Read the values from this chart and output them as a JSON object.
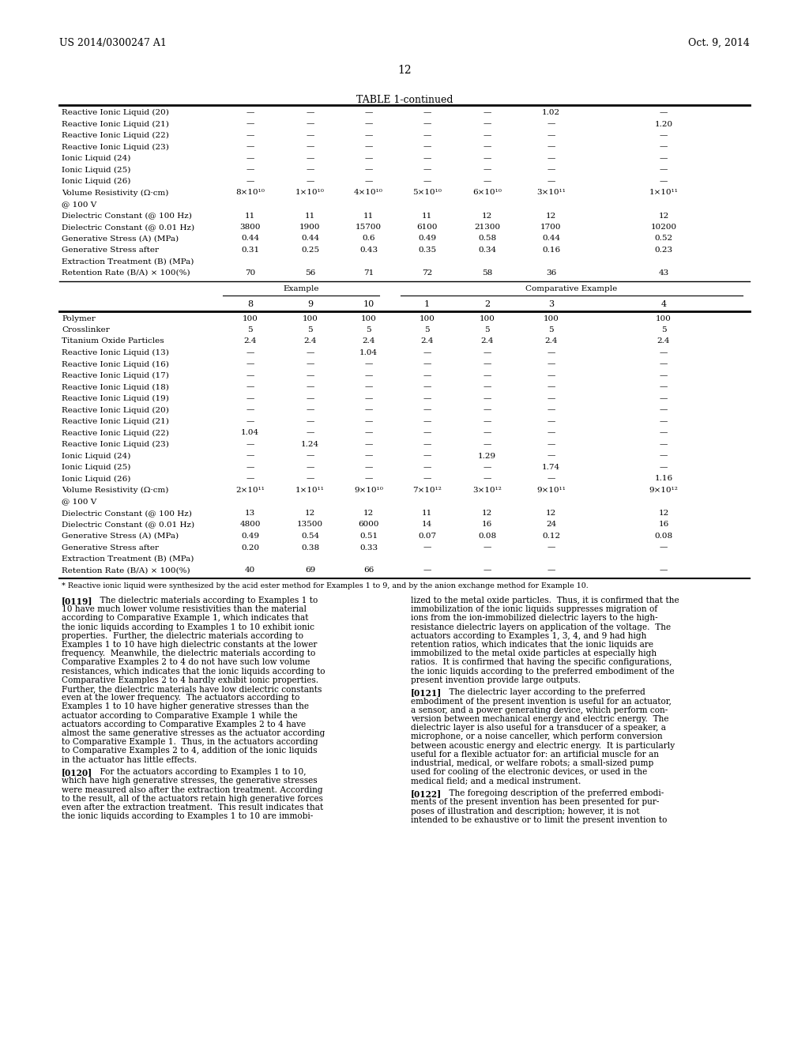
{
  "page_width": 10.24,
  "page_height": 13.2,
  "dpi": 100,
  "background_color": "#ffffff",
  "header_left": "US 2014/0300247 A1",
  "header_right": "Oct. 9, 2014",
  "page_number": "12",
  "table_title": "TABLE 1-continued",
  "table1_rows": [
    [
      "Reactive Ionic Liquid (20)",
      "—",
      "—",
      "—",
      "—",
      "—",
      "1.02",
      "—"
    ],
    [
      "Reactive Ionic Liquid (21)",
      "—",
      "—",
      "—",
      "—",
      "—",
      "—",
      "1.20"
    ],
    [
      "Reactive Ionic Liquid (22)",
      "—",
      "—",
      "—",
      "—",
      "—",
      "—",
      "—"
    ],
    [
      "Reactive Ionic Liquid (23)",
      "—",
      "—",
      "—",
      "—",
      "—",
      "—",
      "—"
    ],
    [
      "Ionic Liquid (24)",
      "—",
      "—",
      "—",
      "—",
      "—",
      "—",
      "—"
    ],
    [
      "Ionic Liquid (25)",
      "—",
      "—",
      "—",
      "—",
      "—",
      "—",
      "—"
    ],
    [
      "Ionic Liquid (26)",
      "—",
      "—",
      "—",
      "—",
      "—",
      "—",
      "—"
    ],
    [
      "Volume Resistivity (Ω·cm)",
      "8×10¹⁰",
      "1×10¹⁰",
      "4×10¹⁰",
      "5×10¹⁰",
      "6×10¹⁰",
      "3×10¹¹",
      "1×10¹¹"
    ],
    [
      "@ 100 V",
      "",
      "",
      "",
      "",
      "",
      "",
      ""
    ],
    [
      "Dielectric Constant (@ 100 Hz)",
      "11",
      "11",
      "11",
      "11",
      "12",
      "12",
      "12"
    ],
    [
      "Dielectric Constant (@ 0.01 Hz)",
      "3800",
      "1900",
      "15700",
      "6100",
      "21300",
      "1700",
      "10200"
    ],
    [
      "Generative Stress (A) (MPa)",
      "0.44",
      "0.44",
      "0.6",
      "0.49",
      "0.58",
      "0.44",
      "0.52"
    ],
    [
      "Generative Stress after",
      "0.31",
      "0.25",
      "0.43",
      "0.35",
      "0.34",
      "0.16",
      "0.23"
    ],
    [
      "Extraction Treatment (B) (MPa)",
      "",
      "",
      "",
      "",
      "",
      "",
      ""
    ],
    [
      "Retention Rate (B/A) × 100(%)",
      "70",
      "56",
      "71",
      "72",
      "58",
      "36",
      "43"
    ]
  ],
  "table2_col_numbers": [
    "8",
    "9",
    "10",
    "1",
    "2",
    "3",
    "4"
  ],
  "table2_rows": [
    [
      "Polymer",
      "100",
      "100",
      "100",
      "100",
      "100",
      "100",
      "100"
    ],
    [
      "Crosslinker",
      "5",
      "5",
      "5",
      "5",
      "5",
      "5",
      "5"
    ],
    [
      "Titanium Oxide Particles",
      "2.4",
      "2.4",
      "2.4",
      "2.4",
      "2.4",
      "2.4",
      "2.4"
    ],
    [
      "Reactive Ionic Liquid (13)",
      "—",
      "—",
      "1.04",
      "—",
      "—",
      "—",
      "—"
    ],
    [
      "Reactive Ionic Liquid (16)",
      "—",
      "—",
      "—",
      "—",
      "—",
      "—",
      "—"
    ],
    [
      "Reactive Ionic Liquid (17)",
      "—",
      "—",
      "—",
      "—",
      "—",
      "—",
      "—"
    ],
    [
      "Reactive Ionic Liquid (18)",
      "—",
      "—",
      "—",
      "—",
      "—",
      "—",
      "—"
    ],
    [
      "Reactive Ionic Liquid (19)",
      "—",
      "—",
      "—",
      "—",
      "—",
      "—",
      "—"
    ],
    [
      "Reactive Ionic Liquid (20)",
      "—",
      "—",
      "—",
      "—",
      "—",
      "—",
      "—"
    ],
    [
      "Reactive Ionic Liquid (21)",
      "—",
      "—",
      "—",
      "—",
      "—",
      "—",
      "—"
    ],
    [
      "Reactive Ionic Liquid (22)",
      "1.04",
      "—",
      "—",
      "—",
      "—",
      "—",
      "—"
    ],
    [
      "Reactive Ionic Liquid (23)",
      "—",
      "1.24",
      "—",
      "—",
      "—",
      "—",
      "—"
    ],
    [
      "Ionic Liquid (24)",
      "—",
      "—",
      "—",
      "—",
      "1.29",
      "—",
      "—"
    ],
    [
      "Ionic Liquid (25)",
      "—",
      "—",
      "—",
      "—",
      "—",
      "1.74",
      "—"
    ],
    [
      "Ionic Liquid (26)",
      "—",
      "—",
      "—",
      "—",
      "—",
      "—",
      "1.16"
    ],
    [
      "Volume Resistivity (Ω·cm)",
      "2×10¹¹",
      "1×10¹¹",
      "9×10¹⁰",
      "7×10¹²",
      "3×10¹²",
      "9×10¹¹",
      "9×10¹²"
    ],
    [
      "@ 100 V",
      "",
      "",
      "",
      "",
      "",
      "",
      ""
    ],
    [
      "Dielectric Constant (@ 100 Hz)",
      "13",
      "12",
      "12",
      "11",
      "12",
      "12",
      "12"
    ],
    [
      "Dielectric Constant (@ 0.01 Hz)",
      "4800",
      "13500",
      "6000",
      "14",
      "16",
      "24",
      "16"
    ],
    [
      "Generative Stress (A) (MPa)",
      "0.49",
      "0.54",
      "0.51",
      "0.07",
      "0.08",
      "0.12",
      "0.08"
    ],
    [
      "Generative Stress after",
      "0.20",
      "0.38",
      "0.33",
      "—",
      "—",
      "—",
      "—"
    ],
    [
      "Extraction Treatment (B) (MPa)",
      "",
      "",
      "",
      "",
      "",
      "",
      ""
    ],
    [
      "Retention Rate (B/A) × 100(%)",
      "40",
      "69",
      "66",
      "—",
      "—",
      "—",
      "—"
    ]
  ],
  "footnote": "* Reactive ionic liquid were synthesized by the acid ester method for Examples 1 to 9, and by the anion exchange method for Example 10.",
  "left_col_lines": [
    "[0119] The dielectric materials according to Examples 1 to",
    "10 have much lower volume resistivities than the material",
    "according to Comparative Example 1, which indicates that",
    "the ionic liquids according to Examples 1 to 10 exhibit ionic",
    "properties.  Further, the dielectric materials according to",
    "Examples 1 to 10 have high dielectric constants at the lower",
    "frequency.  Meanwhile, the dielectric materials according to",
    "Comparative Examples 2 to 4 do not have such low volume",
    "resistances, which indicates that the ionic liquids according to",
    "Comparative Examples 2 to 4 hardly exhibit ionic properties.",
    "Further, the dielectric materials have low dielectric constants",
    "even at the lower frequency.  The actuators according to",
    "Examples 1 to 10 have higher generative stresses than the",
    "actuator according to Comparative Example 1 while the",
    "actuators according to Comparative Examples 2 to 4 have",
    "almost the same generative stresses as the actuator according",
    "to Comparative Example 1.  Thus, in the actuators according",
    "to Comparative Examples 2 to 4, addition of the ionic liquids",
    "in the actuator has little effects.",
    "",
    "[0120] For the actuators according to Examples 1 to 10,",
    "which have high generative stresses, the generative stresses",
    "were measured also after the extraction treatment. According",
    "to the result, all of the actuators retain high generative forces",
    "even after the extraction treatment.  This result indicates that",
    "the ionic liquids according to Examples 1 to 10 are immobi-"
  ],
  "right_col_lines": [
    "lized to the metal oxide particles.  Thus, it is confirmed that the",
    "immobilization of the ionic liquids suppresses migration of",
    "ions from the ion-immobilized dielectric layers to the high-",
    "resistance dielectric layers on application of the voltage.  The",
    "actuators according to Examples 1, 3, 4, and 9 had high",
    "retention ratios, which indicates that the ionic liquids are",
    "immobilized to the metal oxide particles at especially high",
    "ratios.  It is confirmed that having the specific configurations,",
    "the ionic liquids according to the preferred embodiment of the",
    "present invention provide large outputs.",
    "",
    "[0121] The dielectric layer according to the preferred",
    "embodiment of the present invention is useful for an actuator,",
    "a sensor, and a power generating device, which perform con-",
    "version between mechanical energy and electric energy.  The",
    "dielectric layer is also useful for a transducer of a speaker, a",
    "microphone, or a noise canceller, which perform conversion",
    "between acoustic energy and electric energy.  It is particularly",
    "useful for a flexible actuator for: an artificial muscle for an",
    "industrial, medical, or welfare robots; a small-sized pump",
    "used for cooling of the electronic devices, or used in the",
    "medical field; and a medical instrument.",
    "",
    "[0122] The foregoing description of the preferred embodi-",
    "ments of the present invention has been presented for pur-",
    "poses of illustration and description; however, it is not",
    "intended to be exhaustive or to limit the present invention to"
  ],
  "bold_line_prefixes": [
    "[0119]",
    "[0120]",
    "[0121]",
    "[0122]"
  ]
}
